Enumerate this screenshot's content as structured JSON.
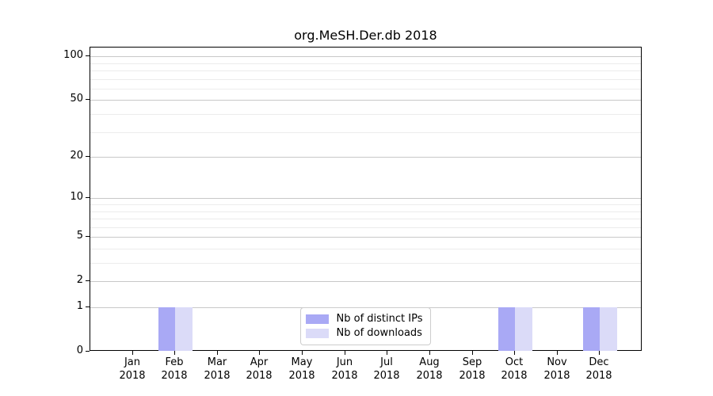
{
  "chart_data": {
    "type": "bar",
    "title": "org.MeSH.Der.db 2018",
    "x_tick_labels": [
      {
        "line1": "Jan",
        "line2": "2018"
      },
      {
        "line1": "Feb",
        "line2": "2018"
      },
      {
        "line1": "Mar",
        "line2": "2018"
      },
      {
        "line1": "Apr",
        "line2": "2018"
      },
      {
        "line1": "May",
        "line2": "2018"
      },
      {
        "line1": "Jun",
        "line2": "2018"
      },
      {
        "line1": "Jul",
        "line2": "2018"
      },
      {
        "line1": "Aug",
        "line2": "2018"
      },
      {
        "line1": "Sep",
        "line2": "2018"
      },
      {
        "line1": "Oct",
        "line2": "2018"
      },
      {
        "line1": "Nov",
        "line2": "2018"
      },
      {
        "line1": "Dec",
        "line2": "2018"
      }
    ],
    "series": [
      {
        "name": "Nb of distinct IPs",
        "color": "#a9a9f5",
        "values": [
          0,
          1,
          0,
          0,
          0,
          0,
          0,
          0,
          0,
          1,
          0,
          1
        ]
      },
      {
        "name": "Nb of downloads",
        "color": "#dbdbf8",
        "values": [
          0,
          1,
          0,
          0,
          0,
          0,
          0,
          0,
          0,
          1,
          0,
          1
        ]
      }
    ],
    "y_axis": {
      "scale": "log1p",
      "ylim": [
        0,
        115
      ],
      "major_ticks": [
        0,
        1,
        2,
        5,
        10,
        20,
        50,
        100
      ],
      "minor_gridlines": [
        3,
        4,
        6,
        7,
        8,
        9,
        30,
        40,
        60,
        70,
        80,
        90
      ]
    },
    "legend": {
      "position": "lower center"
    },
    "grid": true,
    "colors": {
      "major_grid": "#c8c8c8",
      "minor_grid": "#ececec",
      "axis": "#000000",
      "background": "#ffffff"
    }
  }
}
